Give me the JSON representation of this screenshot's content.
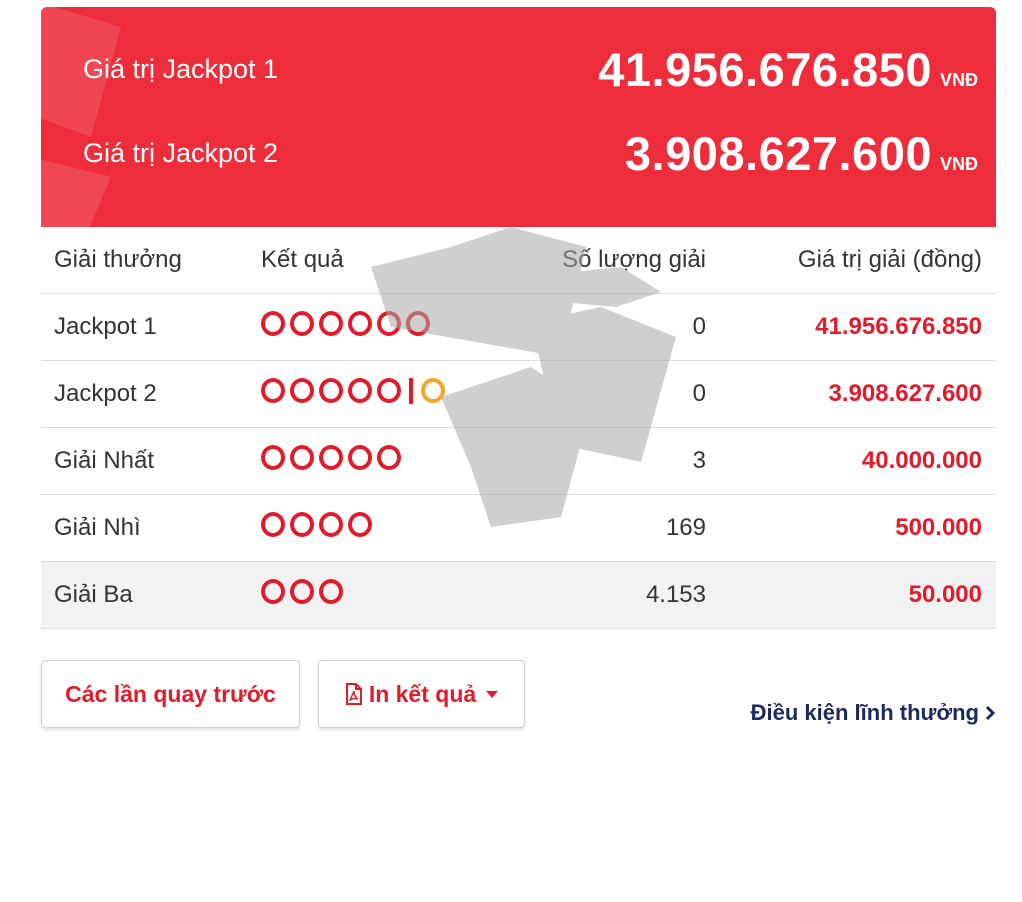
{
  "jackpots": [
    {
      "label": "Giá trị Jackpot 1",
      "value": "41.956.676.850",
      "unit": "VNĐ"
    },
    {
      "label": "Giá trị Jackpot 2",
      "value": "3.908.627.600",
      "unit": "VNĐ"
    }
  ],
  "table": {
    "headers": [
      "Giải thưởng",
      "Kết quả",
      "Số lượng giải",
      "Giá trị giải (đồng)"
    ],
    "rows": [
      {
        "prize": "Jackpot 1",
        "balls": 6,
        "special": false,
        "count": "0",
        "value": "41.956.676.850"
      },
      {
        "prize": "Jackpot 2",
        "balls": 5,
        "special": true,
        "count": "0",
        "value": "3.908.627.600"
      },
      {
        "prize": "Giải Nhất",
        "balls": 5,
        "special": false,
        "count": "3",
        "value": "40.000.000"
      },
      {
        "prize": "Giải Nhì",
        "balls": 4,
        "special": false,
        "count": "169",
        "value": "500.000"
      },
      {
        "prize": "Giải Ba",
        "balls": 3,
        "special": false,
        "count": "4.153",
        "value": "50.000"
      }
    ]
  },
  "actions": {
    "previous_draws": "Các lần quay trước",
    "print_results": "In kết quả",
    "prize_conditions": "Điều kiện lĩnh thưởng"
  },
  "colors": {
    "banner": "#ee2d3c",
    "ball": "#e21b2b",
    "special_ball": "#f5a623",
    "link": "#1b2a5c"
  },
  "icons": {
    "print": "pdf-file-icon",
    "dropdown": "caret-down-icon",
    "link": "chevron-right-icon"
  }
}
